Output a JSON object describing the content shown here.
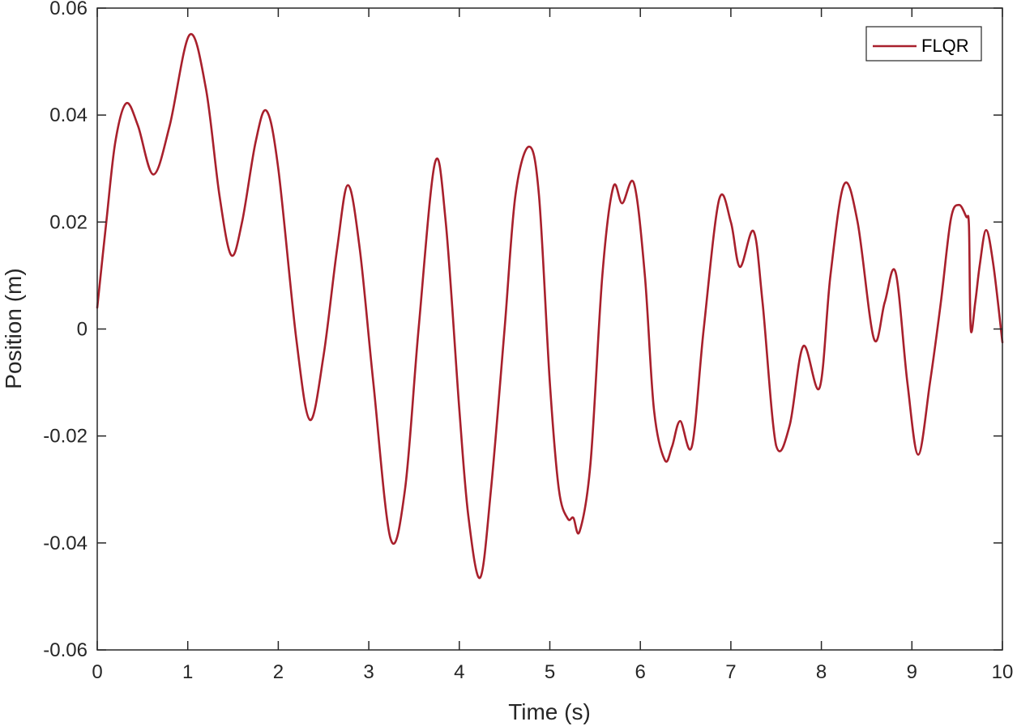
{
  "chart_data": {
    "type": "line",
    "xlabel": "Time (s)",
    "ylabel": "Position (m)",
    "xlim": [
      0,
      10
    ],
    "ylim": [
      -0.06,
      0.06
    ],
    "x_ticks": [
      0,
      1,
      2,
      3,
      4,
      5,
      6,
      7,
      8,
      9,
      10
    ],
    "x_tick_labels": [
      "0",
      "1",
      "2",
      "3",
      "4",
      "5",
      "6",
      "7",
      "8",
      "9",
      "10"
    ],
    "y_ticks": [
      -0.06,
      -0.04,
      -0.02,
      0,
      0.02,
      0.04,
      0.06
    ],
    "y_tick_labels": [
      "-0.06",
      "-0.04",
      "-0.02",
      "0",
      "0.02",
      "0.04",
      "0.06"
    ],
    "grid": false,
    "legend_position": "top-right",
    "series": [
      {
        "name": "FLQR",
        "color": "#a8202c",
        "x": [
          0,
          0.1,
          0.2,
          0.32,
          0.45,
          0.62,
          0.8,
          1.02,
          1.2,
          1.35,
          1.48,
          1.6,
          1.75,
          1.87,
          2.0,
          2.2,
          2.35,
          2.5,
          2.65,
          2.77,
          2.9,
          3.05,
          3.24,
          3.4,
          3.55,
          3.73,
          3.85,
          4.0,
          4.1,
          4.23,
          4.35,
          4.5,
          4.62,
          4.77,
          4.88,
          5.0,
          5.1,
          5.2,
          5.26,
          5.33,
          5.45,
          5.58,
          5.7,
          5.8,
          5.93,
          6.05,
          6.15,
          6.27,
          6.35,
          6.44,
          6.57,
          6.7,
          6.87,
          7.0,
          7.1,
          7.25,
          7.35,
          7.5,
          7.65,
          7.8,
          7.98,
          8.1,
          8.25,
          8.4,
          8.58,
          8.7,
          8.82,
          8.95,
          9.07,
          9.2,
          9.32,
          9.43,
          9.52,
          9.6,
          9.63,
          9.65,
          9.7,
          9.75,
          9.82,
          9.9,
          10.0
        ],
        "values": [
          0.004,
          0.02,
          0.035,
          0.0422,
          0.038,
          0.0289,
          0.038,
          0.055,
          0.045,
          0.025,
          0.0138,
          0.02,
          0.035,
          0.0408,
          0.03,
          -0.002,
          -0.017,
          -0.005,
          0.015,
          0.0269,
          0.015,
          -0.01,
          -0.0392,
          -0.03,
          0.0,
          0.031,
          0.02,
          -0.015,
          -0.035,
          -0.0465,
          -0.03,
          0.0,
          0.025,
          0.0341,
          0.025,
          -0.01,
          -0.03,
          -0.0355,
          -0.0353,
          -0.0378,
          -0.025,
          0.01,
          0.0265,
          0.0235,
          0.0272,
          0.01,
          -0.015,
          -0.0245,
          -0.022,
          -0.0172,
          -0.0219,
          0.0,
          0.0242,
          0.02,
          0.0116,
          0.0183,
          0.005,
          -0.0218,
          -0.018,
          -0.0032,
          -0.011,
          0.01,
          0.027,
          0.02,
          -0.0018,
          0.005,
          0.0106,
          -0.01,
          -0.0235,
          -0.01,
          0.005,
          0.0205,
          0.0232,
          0.021,
          0.0195,
          0.0,
          0.005,
          0.012,
          0.0185,
          0.012,
          -0.0025
        ]
      }
    ]
  }
}
